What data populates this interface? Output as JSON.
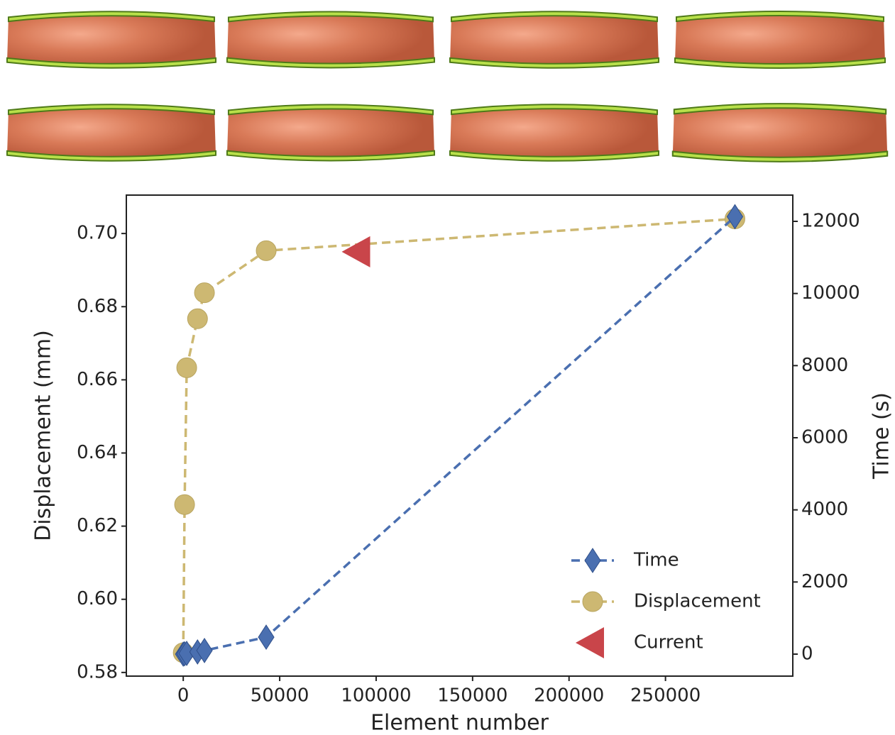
{
  "chart_data": {
    "type": "line",
    "xlabel": "Element number",
    "ylabel": "Displacement (mm)",
    "y2label": "Time (s)",
    "xlim": [
      -29500,
      316000
    ],
    "xticks": [
      0,
      50000,
      100000,
      150000,
      200000,
      250000
    ],
    "ylim": [
      0.579,
      0.7105
    ],
    "yticks": [
      0.58,
      {
        "value": 0.6,
        "label": "0.60"
      },
      0.62,
      0.64,
      0.66,
      0.68,
      {
        "value": 0.7,
        "label": "0.70"
      }
    ],
    "y2lim": [
      -610,
      12728
    ],
    "y2ticks": [
      0,
      2000,
      4000,
      6000,
      8000,
      10000,
      12000
    ],
    "legend": "lower right",
    "series": [
      {
        "name": "Time",
        "color": "#4a6fb0",
        "marker": "diamond",
        "linestyle": "dashed",
        "axis": "y2",
        "x": [
          0,
          700,
          1800,
          7400,
          11000,
          43000,
          286000
        ],
        "values": [
          0,
          10,
          20,
          60,
          100,
          470,
          12130
        ]
      },
      {
        "name": "Displacement",
        "color": "#cdb872",
        "marker": "circle",
        "linestyle": "dashed",
        "x": [
          0,
          700,
          1800,
          7400,
          11000,
          43000,
          286000
        ],
        "values": [
          0.5854,
          0.6259,
          0.6633,
          0.6767,
          0.6838,
          0.6953,
          0.704
        ]
      },
      {
        "name": "Current",
        "color": "#c9454a",
        "marker": "triangle-left",
        "linestyle": "none",
        "x": [
          91000
        ],
        "values": [
          0.695
        ]
      }
    ]
  }
}
